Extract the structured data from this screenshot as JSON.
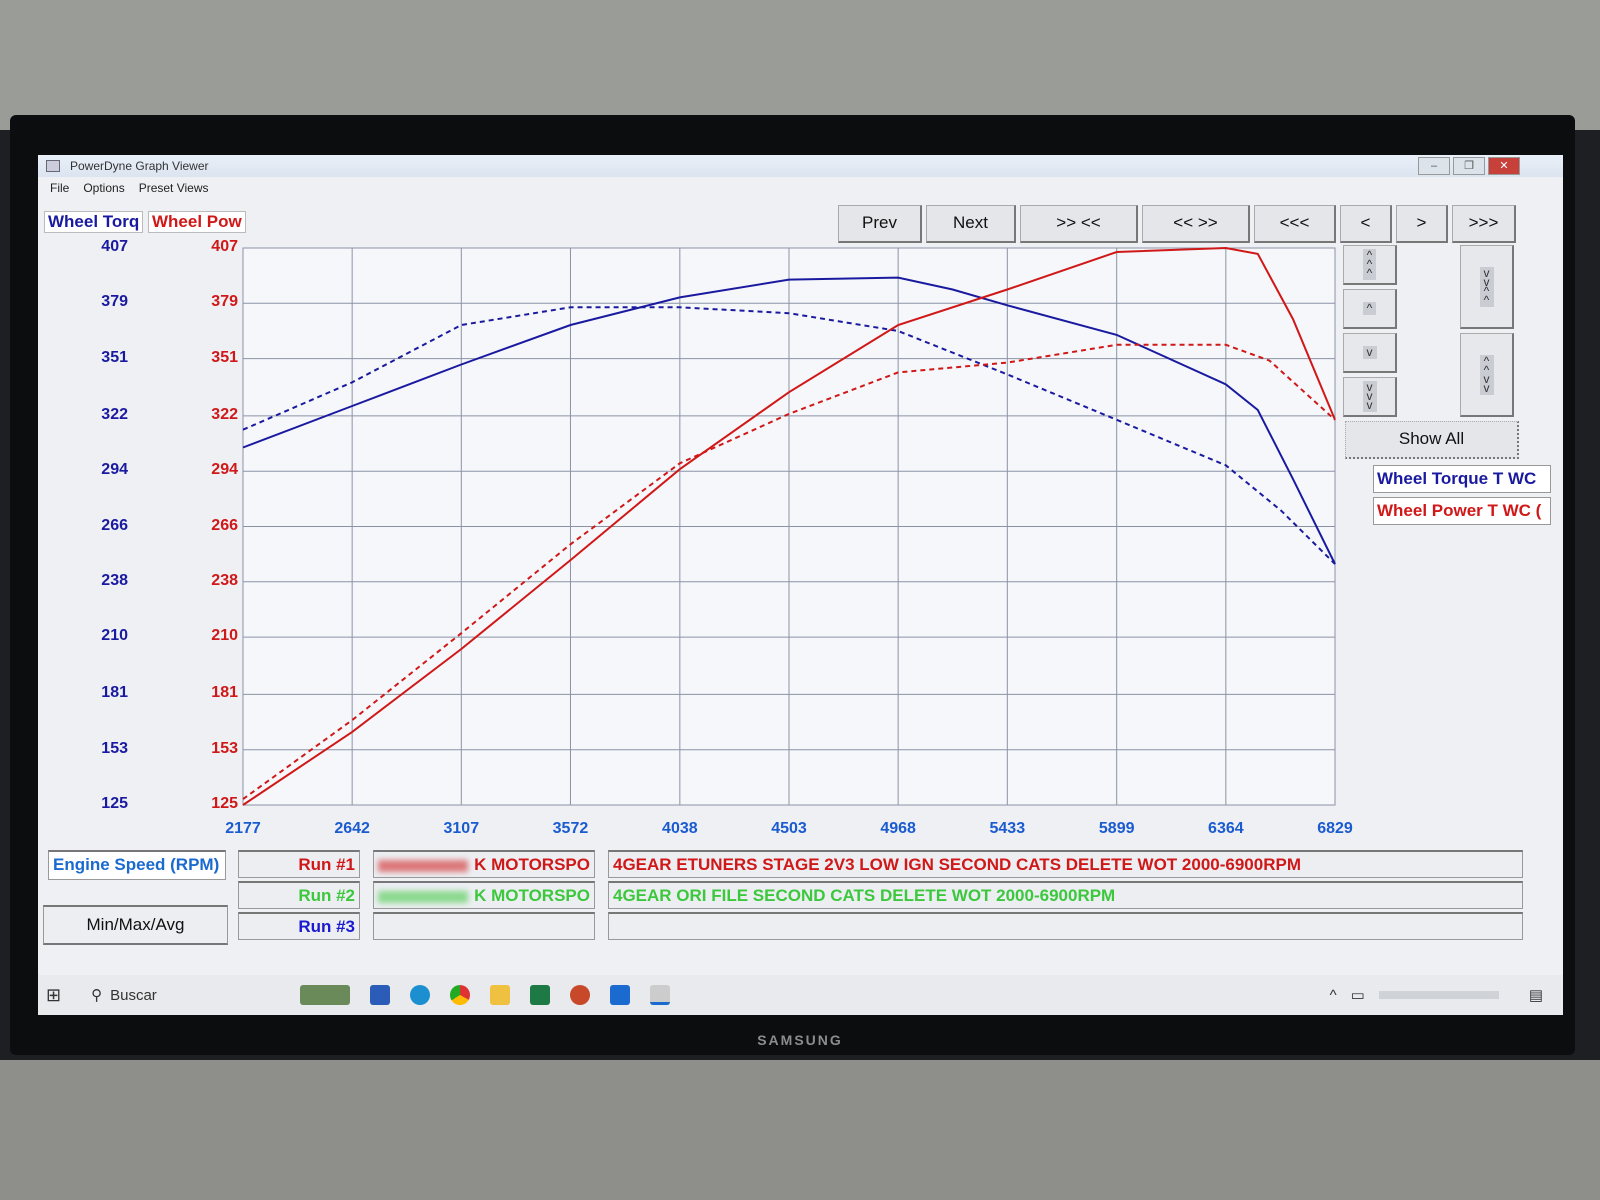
{
  "window": {
    "title": "PowerDyne Graph Viewer",
    "controls": [
      "minimize",
      "restore",
      "close"
    ]
  },
  "menu": [
    "File",
    "Options",
    "Preset Views"
  ],
  "axis_titles": {
    "left": "Wheel Torq",
    "right": "Wheel Pow"
  },
  "nav_buttons": [
    "Prev",
    "Next",
    ">> <<",
    "<< >>",
    "<<<",
    "<",
    ">",
    ">>>"
  ],
  "scroll_buttons": {
    "left": [
      "^\n^\n^",
      "^",
      "v",
      "v\nv\nv"
    ],
    "right": [
      "v\nv\n^\n^",
      "^\n^\nv\nv"
    ]
  },
  "show_all": "Show All",
  "legend": [
    {
      "label": "Wheel Torque T WC",
      "color": "#1a1aa0"
    },
    {
      "label": "Wheel Power T WC (",
      "color": "#d01818"
    }
  ],
  "x_axis_label": "Engine Speed (RPM)",
  "min_max_avg": "Min/Max/Avg",
  "runs": [
    {
      "label": "Run #1",
      "name": "K MOTORSPO",
      "description": "4GEAR ETUNERS STAGE 2V3 LOW IGN SECOND CATS DELETE WOT 2000-6900RPM",
      "color": "#d01818"
    },
    {
      "label": "Run #2",
      "name": "K MOTORSPO",
      "description": "4GEAR ORI FILE SECOND CATS DELETE WOT 2000-6900RPM",
      "color": "#3cc83c"
    },
    {
      "label": "Run #3",
      "name": "",
      "description": "",
      "color": "#1a1ad0"
    }
  ],
  "taskbar": {
    "search_placeholder": "Buscar",
    "apps": [
      "word",
      "edge",
      "chrome",
      "explorer",
      "excel",
      "powerpoint",
      "outlook",
      "powerdyne"
    ]
  },
  "monitor_brand": "SAMSUNG",
  "chart_data": {
    "type": "line",
    "xlabel": "Engine Speed (RPM)",
    "ylabel_left": "Wheel Torq",
    "ylabel_right": "Wheel Pow",
    "xlim": [
      2177,
      6829
    ],
    "ylim": [
      125,
      407
    ],
    "x_ticks": [
      2177,
      2642,
      3107,
      3572,
      4038,
      4503,
      4968,
      5433,
      5899,
      6364,
      6829
    ],
    "y_ticks": [
      407,
      379,
      351,
      322,
      294,
      266,
      238,
      210,
      181,
      153,
      125
    ],
    "grid": true,
    "series": [
      {
        "name": "Wheel Torque T WC",
        "run": "Run #1",
        "color": "#1a1aa0",
        "dash": false,
        "x": [
          2177,
          2642,
          3107,
          3572,
          4038,
          4503,
          4968,
          5200,
          5433,
          5899,
          6364,
          6500,
          6650,
          6829
        ],
        "y": [
          306,
          327,
          348,
          368,
          382,
          391,
          392,
          386,
          378,
          363,
          338,
          325,
          290,
          247
        ]
      },
      {
        "name": "Wheel Torque T WC",
        "run": "Run #2",
        "color": "#1a1aa0",
        "dash": true,
        "x": [
          2177,
          2642,
          3107,
          3572,
          4038,
          4503,
          4968,
          5433,
          5899,
          6364,
          6600,
          6829
        ],
        "y": [
          315,
          339,
          368,
          377,
          377,
          374,
          365,
          343,
          320,
          297,
          274,
          247
        ]
      },
      {
        "name": "Wheel Power T WC (",
        "run": "Run #1",
        "color": "#d01818",
        "dash": false,
        "x": [
          2177,
          2642,
          3107,
          3572,
          4038,
          4503,
          4968,
          5433,
          5899,
          6364,
          6500,
          6650,
          6829
        ],
        "y": [
          125,
          162,
          204,
          249,
          295,
          334,
          368,
          386,
          405,
          407,
          404,
          371,
          320
        ]
      },
      {
        "name": "Wheel Power T WC (",
        "run": "Run #2",
        "color": "#d01818",
        "dash": true,
        "x": [
          2177,
          2642,
          3107,
          3572,
          4038,
          4503,
          4968,
          5433,
          5899,
          6364,
          6550,
          6829
        ],
        "y": [
          128,
          168,
          212,
          257,
          298,
          323,
          344,
          349,
          358,
          358,
          350,
          320
        ]
      }
    ]
  }
}
